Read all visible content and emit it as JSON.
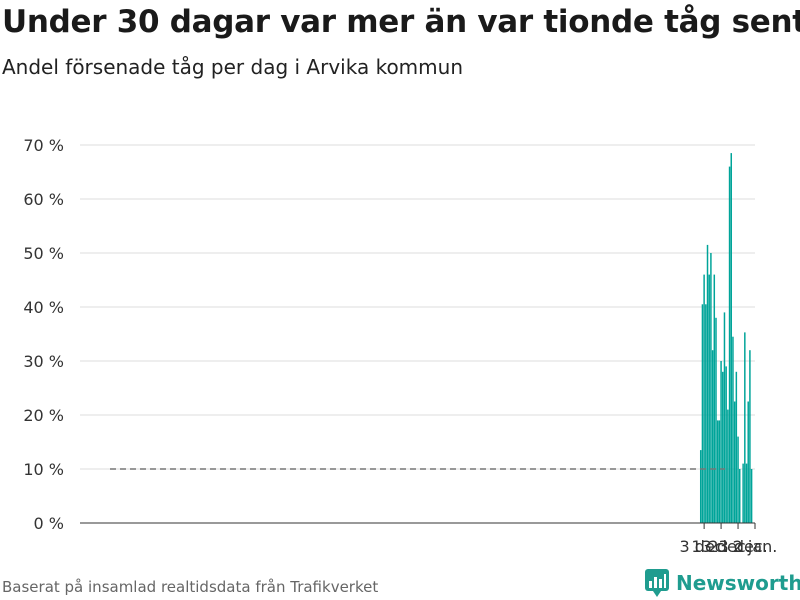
{
  "header": {
    "title": "Under 30 dagar var mer än var tionde tåg sent",
    "subtitle": "Andel försenade tåg per dag i Arvika kommun"
  },
  "footer": {
    "source": "Baserat på insamlad realtidsdata från Trafikverket",
    "brand": "Newsworthy"
  },
  "colors": {
    "bar": "#00a499",
    "grid": "#dddddd",
    "reference_line": "#777777",
    "brand": "#1f9c8f"
  },
  "chart_data": {
    "type": "bar",
    "title": "Under 30 dagar var mer än var tionde tåg sent",
    "subtitle": "Andel försenade tåg per dag i Arvika kommun",
    "xlabel": "",
    "ylabel": "",
    "ylim": [
      0,
      70
    ],
    "yticks": [
      0,
      10,
      20,
      30,
      40,
      50,
      60,
      70
    ],
    "ytick_labels": [
      "0 %",
      "10 %",
      "20 %",
      "30 %",
      "40 %",
      "50 %",
      "60 %",
      "70 %"
    ],
    "xticks": [
      {
        "date": "2018-12-03",
        "label": "3 dec."
      },
      {
        "date": "2018-12-13",
        "label": "13 dec."
      },
      {
        "date": "2018-12-23",
        "label": "23 dec."
      },
      {
        "date": "2019-01-02",
        "label": "2 jan."
      }
    ],
    "x_range": [
      "2017-11-30",
      "2019-01-02"
    ],
    "reference_line": 10,
    "grid": true,
    "legend": "none",
    "categories": [
      "2018-12-01",
      "2018-12-02",
      "2018-12-03",
      "2018-12-04",
      "2018-12-05",
      "2018-12-06",
      "2018-12-07",
      "2018-12-08",
      "2018-12-09",
      "2018-12-10",
      "2018-12-11",
      "2018-12-12",
      "2018-12-13",
      "2018-12-14",
      "2018-12-15",
      "2018-12-16",
      "2018-12-17",
      "2018-12-18",
      "2018-12-19",
      "2018-12-20",
      "2018-12-21",
      "2018-12-22",
      "2018-12-23",
      "2018-12-24",
      "2018-12-25",
      "2018-12-26",
      "2018-12-27",
      "2018-12-28",
      "2018-12-29",
      "2018-12-30",
      "2018-12-31"
    ],
    "values": [
      13.5,
      40.5,
      46,
      40.5,
      51.5,
      46,
      50,
      32,
      46,
      38,
      19,
      19,
      30,
      28,
      39,
      29,
      21,
      66,
      68.5,
      34.5,
      22.5,
      28,
      16,
      10,
      null,
      11,
      35.3,
      11,
      22.5,
      32,
      10
    ]
  }
}
